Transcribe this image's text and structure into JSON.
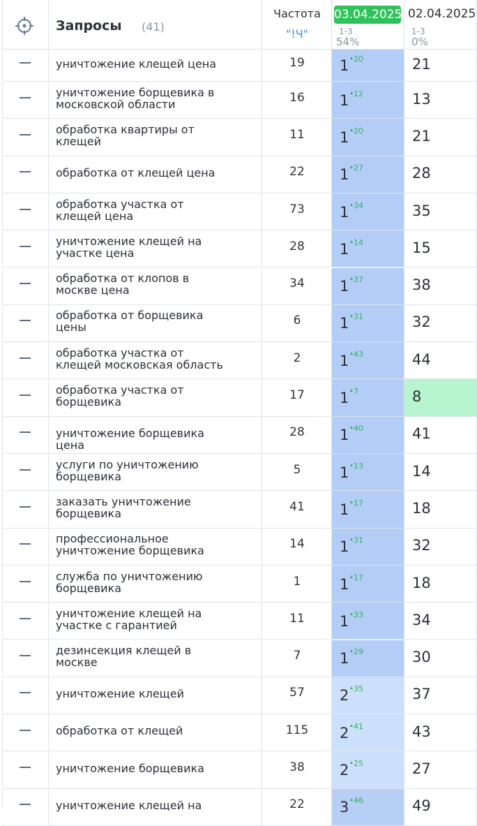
{
  "header": {
    "title": "Запросы",
    "count": "(41)",
    "freq_title": "Частота",
    "freq_sub": "\"!Ч\"",
    "date1": "03.04.2025",
    "date1_range": "1-3",
    "date1_pct": "54%",
    "date2": "02.04.2025",
    "date2_range": "1-3",
    "date2_pct": "0%"
  },
  "table": {
    "rows": [
      [
        "уничтожение клещей цена",
        19,
        1,
        20,
        21
      ],
      [
        "уничтожение борщевика в московской области",
        16,
        1,
        12,
        13
      ],
      [
        "обработка квартиры от клещей",
        11,
        1,
        20,
        21
      ],
      [
        "обработка от клещей цена",
        22,
        1,
        27,
        28
      ],
      [
        "обработка участка от клещей цена",
        73,
        1,
        34,
        35
      ],
      [
        "уничтожение клещей на участке цена",
        28,
        1,
        14,
        15
      ],
      [
        "обработка от клопов в москве цена",
        34,
        1,
        37,
        38
      ],
      [
        "обработка от борщевика цены",
        6,
        1,
        31,
        32
      ],
      [
        "обработка участка от клещей московская область",
        2,
        1,
        43,
        44
      ],
      [
        "обработка участка от борщевика",
        17,
        1,
        7,
        8
      ],
      [
        "уничтожение борщевика цена",
        28,
        1,
        40,
        41
      ],
      [
        "услуги по уничтожению борщевика",
        5,
        1,
        13,
        14
      ],
      [
        "заказать уничтожение борщевика",
        41,
        1,
        17,
        18
      ],
      [
        "профессиональное уничтожение борщевика",
        14,
        1,
        31,
        32
      ],
      [
        "служба по уничтожению борщевика",
        1,
        1,
        17,
        18
      ],
      [
        "уничтожение клещей на участке с гарантией",
        11,
        1,
        33,
        34
      ],
      [
        "дезинсекция клещей в москве",
        7,
        1,
        29,
        30
      ],
      [
        "уничтожение клещей",
        57,
        2,
        35,
        37
      ],
      [
        "обработка от клещей",
        115,
        2,
        41,
        43
      ],
      [
        "уничтожение борщевика",
        38,
        2,
        25,
        27
      ],
      [
        "уничтожение клещей на",
        22,
        3,
        46,
        49
      ]
    ]
  }
}
